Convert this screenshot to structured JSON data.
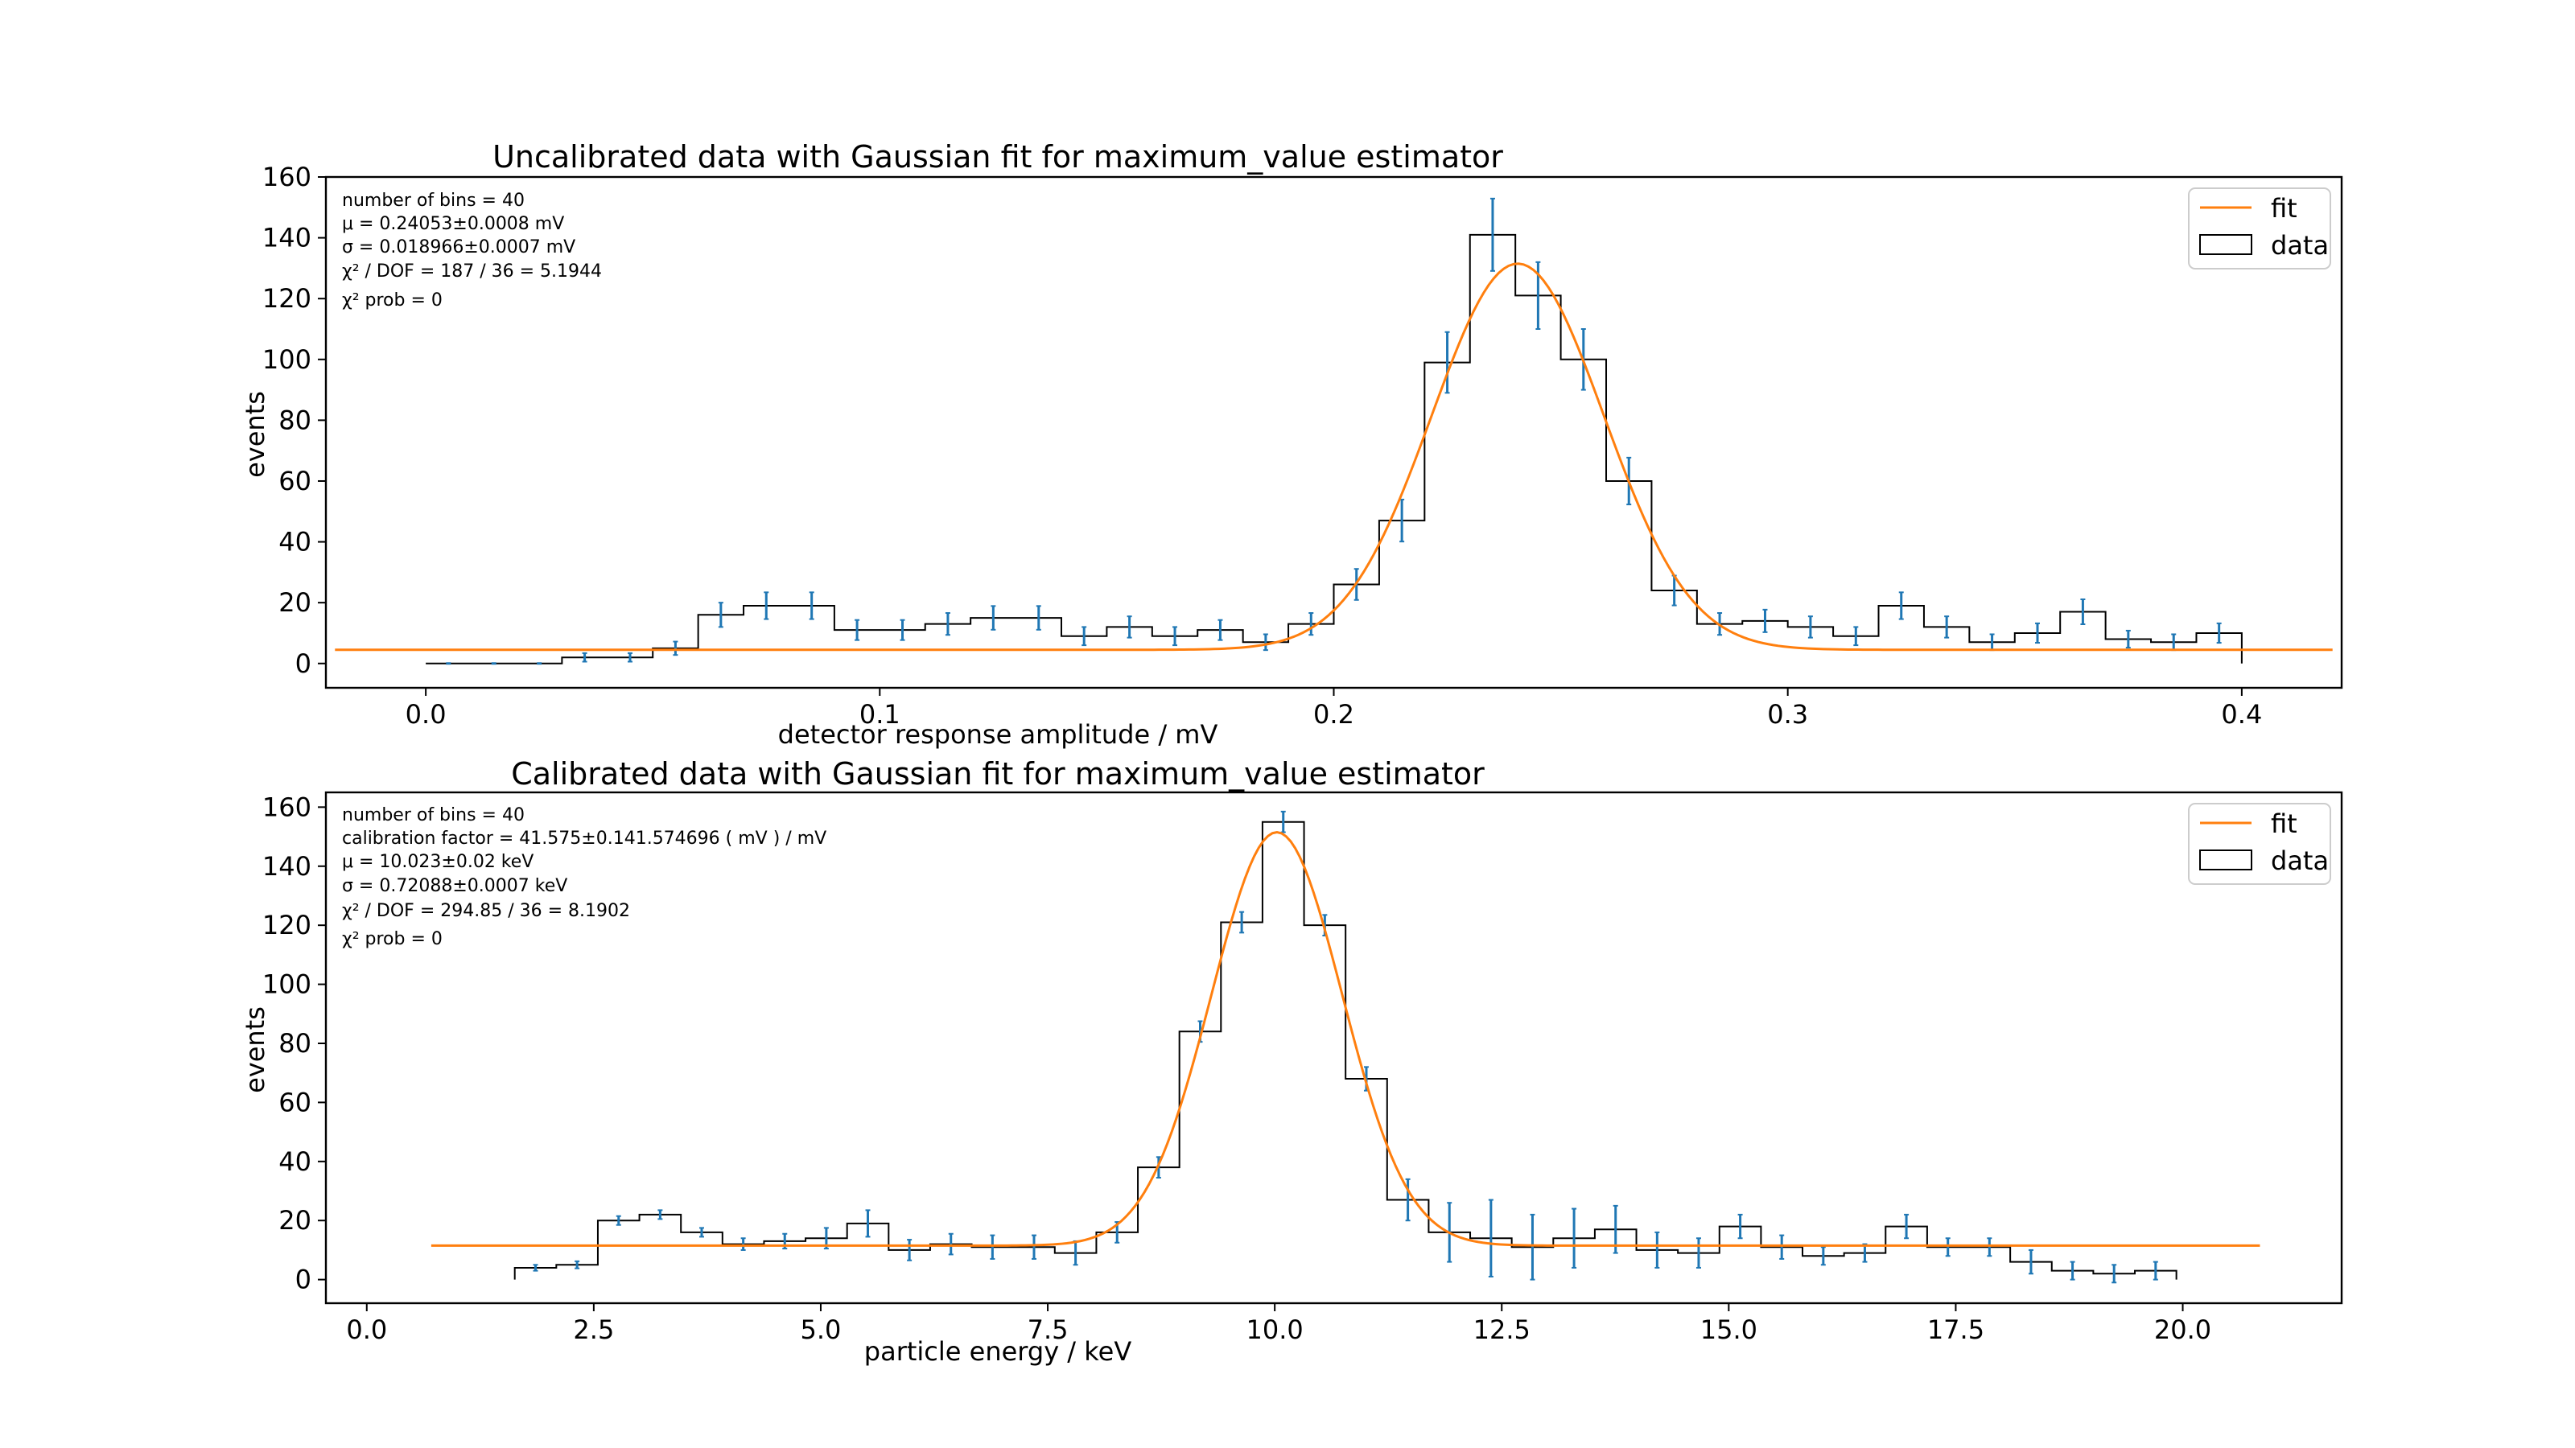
{
  "colors": {
    "fit": "#ff7f0e",
    "errorbar": "#1f77b4",
    "data": "#000000"
  },
  "chart_data": [
    {
      "type": "histogram",
      "title": "Uncalibrated data with Gaussian fit for maximum_value estimator",
      "xlabel": "detector response amplitude / mV",
      "ylabel": "events",
      "xlim": [
        -0.022,
        0.422
      ],
      "ylim": [
        -8,
        160
      ],
      "xticks": [
        0.0,
        0.1,
        0.2,
        0.3,
        0.4
      ],
      "xtick_labels": [
        "0.0",
        "0.1",
        "0.2",
        "0.3",
        "0.4"
      ],
      "yticks": [
        0,
        20,
        40,
        60,
        80,
        100,
        120,
        140,
        160
      ],
      "ytick_labels": [
        "0",
        "20",
        "40",
        "60",
        "80",
        "100",
        "120",
        "140",
        "160"
      ],
      "bin_edges": [
        0.0,
        0.01,
        0.02,
        0.03,
        0.04,
        0.05,
        0.06,
        0.07,
        0.08,
        0.09,
        0.1,
        0.11,
        0.12,
        0.13,
        0.14,
        0.15,
        0.16,
        0.17,
        0.18,
        0.19,
        0.2,
        0.21,
        0.22,
        0.23,
        0.24,
        0.25,
        0.26,
        0.27,
        0.28,
        0.29,
        0.3,
        0.31,
        0.32,
        0.33,
        0.34,
        0.35,
        0.36,
        0.37,
        0.38,
        0.39,
        0.4
      ],
      "counts": [
        0,
        0,
        0,
        2,
        2,
        5,
        16,
        19,
        19,
        11,
        11,
        13,
        15,
        15,
        9,
        12,
        9,
        11,
        7,
        13,
        26,
        47,
        99,
        141,
        121,
        100,
        60,
        24,
        13,
        14,
        12,
        9,
        19,
        12,
        7,
        10,
        17,
        8,
        7,
        10
      ],
      "errors": [
        0,
        0,
        0,
        1.4,
        1.4,
        2.2,
        4.0,
        4.4,
        4.4,
        3.3,
        3.3,
        3.6,
        3.9,
        3.9,
        3.0,
        3.5,
        3.0,
        3.3,
        2.6,
        3.6,
        5.1,
        6.9,
        10,
        11.9,
        11,
        10,
        7.7,
        4.9,
        3.6,
        3.7,
        3.5,
        3.0,
        4.4,
        3.5,
        2.6,
        3.2,
        4.1,
        2.8,
        2.6,
        3.2
      ],
      "fit": {
        "mu": 0.24053,
        "sigma": 0.018966,
        "amplitude": 127,
        "offset": 4.5,
        "x_range": [
          -0.02,
          0.42
        ]
      },
      "info_lines": [
        "number of bins = 40",
        "μ = 0.24053±0.0008 mV",
        "σ = 0.018966±0.0007 mV",
        "χ² / DOF = 187 / 36 = 5.1944",
        "χ² prob = 0"
      ],
      "legend": {
        "position": "upper right",
        "fit_label": "fit",
        "data_label": "data"
      }
    },
    {
      "type": "histogram",
      "title": "Calibrated data with Gaussian fit for maximum_value estimator",
      "xlabel": "particle energy / keV",
      "ylabel": "events",
      "xlim": [
        -0.45,
        21.75
      ],
      "ylim": [
        -8,
        165
      ],
      "xticks": [
        0.0,
        2.5,
        5.0,
        7.5,
        10.0,
        12.5,
        15.0,
        17.5,
        20.0
      ],
      "xtick_labels": [
        "0.0",
        "2.5",
        "5.0",
        "7.5",
        "10.0",
        "12.5",
        "15.0",
        "17.5",
        "20.0"
      ],
      "yticks": [
        0,
        20,
        40,
        60,
        80,
        100,
        120,
        140,
        160
      ],
      "ytick_labels": [
        "0",
        "20",
        "40",
        "60",
        "80",
        "100",
        "120",
        "140",
        "160"
      ],
      "bin_range": [
        1.63,
        19.93
      ],
      "counts": [
        4,
        5,
        20,
        22,
        16,
        12,
        13,
        14,
        19,
        10,
        12,
        11,
        11,
        9,
        16,
        38,
        84,
        121,
        155,
        120,
        68,
        27,
        16,
        14,
        11,
        14,
        17,
        10,
        9,
        18,
        11,
        8,
        9,
        18,
        11,
        11,
        6,
        3,
        2,
        3
      ],
      "errors": [
        1,
        1.2,
        1.5,
        1.5,
        1.5,
        2,
        2.5,
        3.5,
        4.5,
        3.5,
        3.5,
        4,
        4,
        4,
        3.5,
        3.5,
        3.5,
        3.5,
        3.5,
        3.5,
        4,
        7,
        10,
        13,
        11,
        10,
        8,
        6,
        5,
        4,
        4,
        3,
        3,
        4,
        3,
        3,
        4,
        3,
        3,
        3
      ],
      "fit": {
        "mu": 10.023,
        "sigma": 0.72088,
        "amplitude": 140,
        "offset": 11.5,
        "x_range": [
          0.71,
          20.85
        ]
      },
      "info_lines": [
        "number of bins = 40",
        "calibration factor = 41.575±0.141.574696 ( mV ) / mV",
        "μ = 10.023±0.02 keV",
        "σ = 0.72088±0.0007 keV",
        "χ² / DOF = 294.85 / 36 = 8.1902",
        "χ² prob = 0"
      ],
      "legend": {
        "position": "upper right",
        "fit_label": "fit",
        "data_label": "data"
      }
    }
  ]
}
